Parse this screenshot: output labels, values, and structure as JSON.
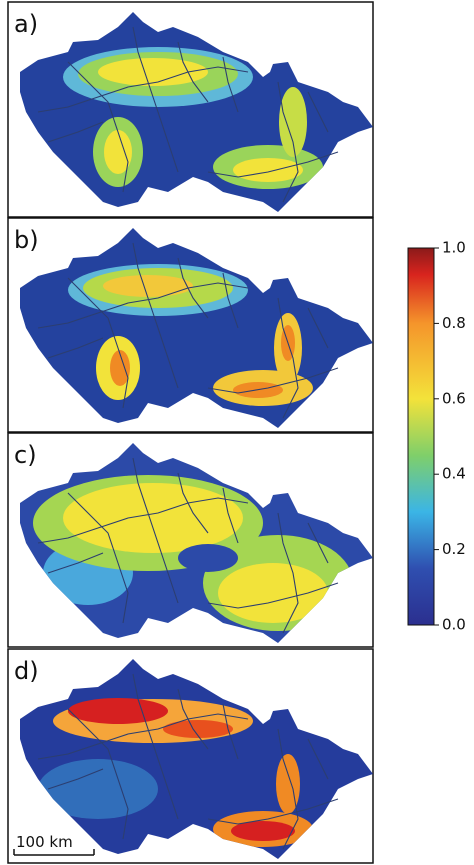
{
  "panels": [
    {
      "label": "a)"
    },
    {
      "label": "b)"
    },
    {
      "label": "c)"
    },
    {
      "label": "d)"
    }
  ],
  "colorbar": {
    "lim": [
      0,
      1
    ],
    "ticks": [
      {
        "value": 0,
        "label": "0.0"
      },
      {
        "value": 0.2,
        "label": "0.2"
      },
      {
        "value": 0.4,
        "label": "0.4"
      },
      {
        "value": 0.6,
        "label": "0.6"
      },
      {
        "value": 0.8,
        "label": "0.8"
      },
      {
        "value": 1,
        "label": "1.0"
      }
    ]
  },
  "scale_bar": {
    "label": "100 km"
  }
}
